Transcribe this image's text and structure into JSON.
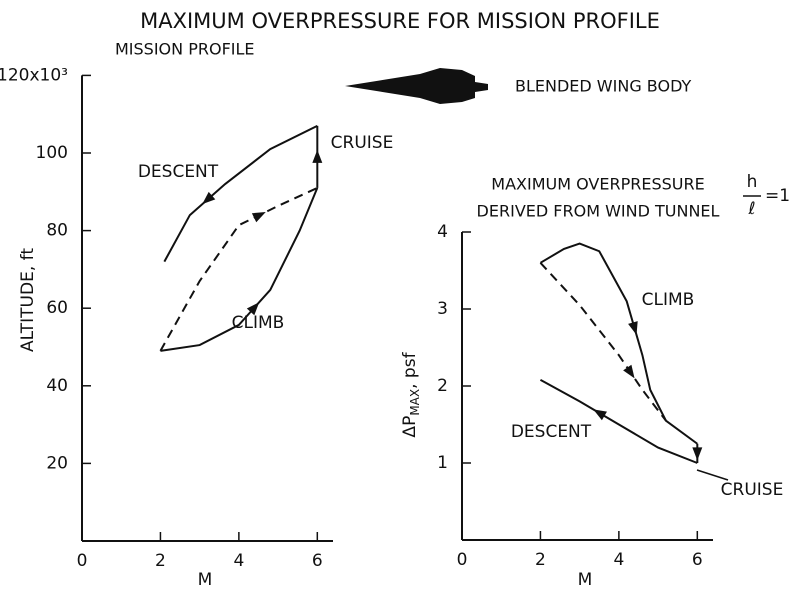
{
  "title": "MAXIMUM OVERPRESSURE FOR MISSION PROFILE",
  "aircraft_label": "BLENDED WING BODY",
  "chart_data": [
    {
      "type": "line",
      "title": "MISSION PROFILE",
      "xlabel": "M",
      "ylabel": "ALTITUDE, ft",
      "xlim": [
        0,
        6.4
      ],
      "ylim": [
        0,
        120
      ],
      "xticks": [
        0,
        2,
        4,
        6
      ],
      "yticks": [
        20,
        40,
        60,
        80,
        100,
        {
          "value": 120,
          "label": "120x10³"
        }
      ],
      "series": [
        {
          "name": "CLIMB",
          "color": "#111111",
          "x": [
            2,
            3,
            4,
            4.8,
            5.55,
            6
          ],
          "values": [
            49,
            50.5,
            55.7,
            64.7,
            80,
            91
          ]
        },
        {
          "name": "CRUISE",
          "color": "#111111",
          "x": [
            6,
            6
          ],
          "values": [
            91,
            107
          ]
        },
        {
          "name": "DESCENT",
          "color": "#111111",
          "x": [
            6,
            4.8,
            3.65,
            2.75,
            2.1
          ],
          "values": [
            107,
            101,
            92,
            84,
            72
          ]
        },
        {
          "color": "#111111",
          "dash": true,
          "x": [
            2,
            3,
            4,
            5.05,
            6
          ],
          "values": [
            49,
            67,
            81.4,
            86.6,
            91
          ]
        }
      ]
    },
    {
      "type": "line",
      "title": [
        "MAXIMUM OVERPRESSURE",
        "DERIVED FROM WIND TUNNEL"
      ],
      "ratio": {
        "numerator": "h",
        "denominator": "ℓ",
        "equals": "=1"
      },
      "xlabel": "M",
      "ylabel": {
        "main": "ΔP",
        "sub": "MAX",
        "unit": ", psf"
      },
      "xlim": [
        0,
        6.4
      ],
      "ylim": [
        0,
        4
      ],
      "xticks": [
        0,
        2,
        4,
        6
      ],
      "yticks": [
        1,
        2,
        3,
        4
      ],
      "series": [
        {
          "name": "CLIMB",
          "color": "#111111",
          "x": [
            2,
            2.6,
            3,
            3.5,
            4.2,
            4.6,
            4.8,
            5.2,
            6
          ],
          "values": [
            3.6,
            3.78,
            3.85,
            3.75,
            3.1,
            2.4,
            1.95,
            1.55,
            1.25
          ]
        },
        {
          "name": "CRUISE",
          "color": "#111111",
          "x": [
            6,
            6
          ],
          "values": [
            1.25,
            1.0
          ]
        },
        {
          "name": "DESCENT",
          "color": "#111111",
          "x": [
            6,
            5,
            4,
            3,
            2
          ],
          "values": [
            1.0,
            1.2,
            1.5,
            1.8,
            2.08
          ]
        },
        {
          "color": "#111111",
          "dash": true,
          "x": [
            2,
            3,
            4,
            4.6,
            5.2
          ],
          "values": [
            3.6,
            3.05,
            2.4,
            1.95,
            1.55
          ]
        }
      ]
    }
  ]
}
